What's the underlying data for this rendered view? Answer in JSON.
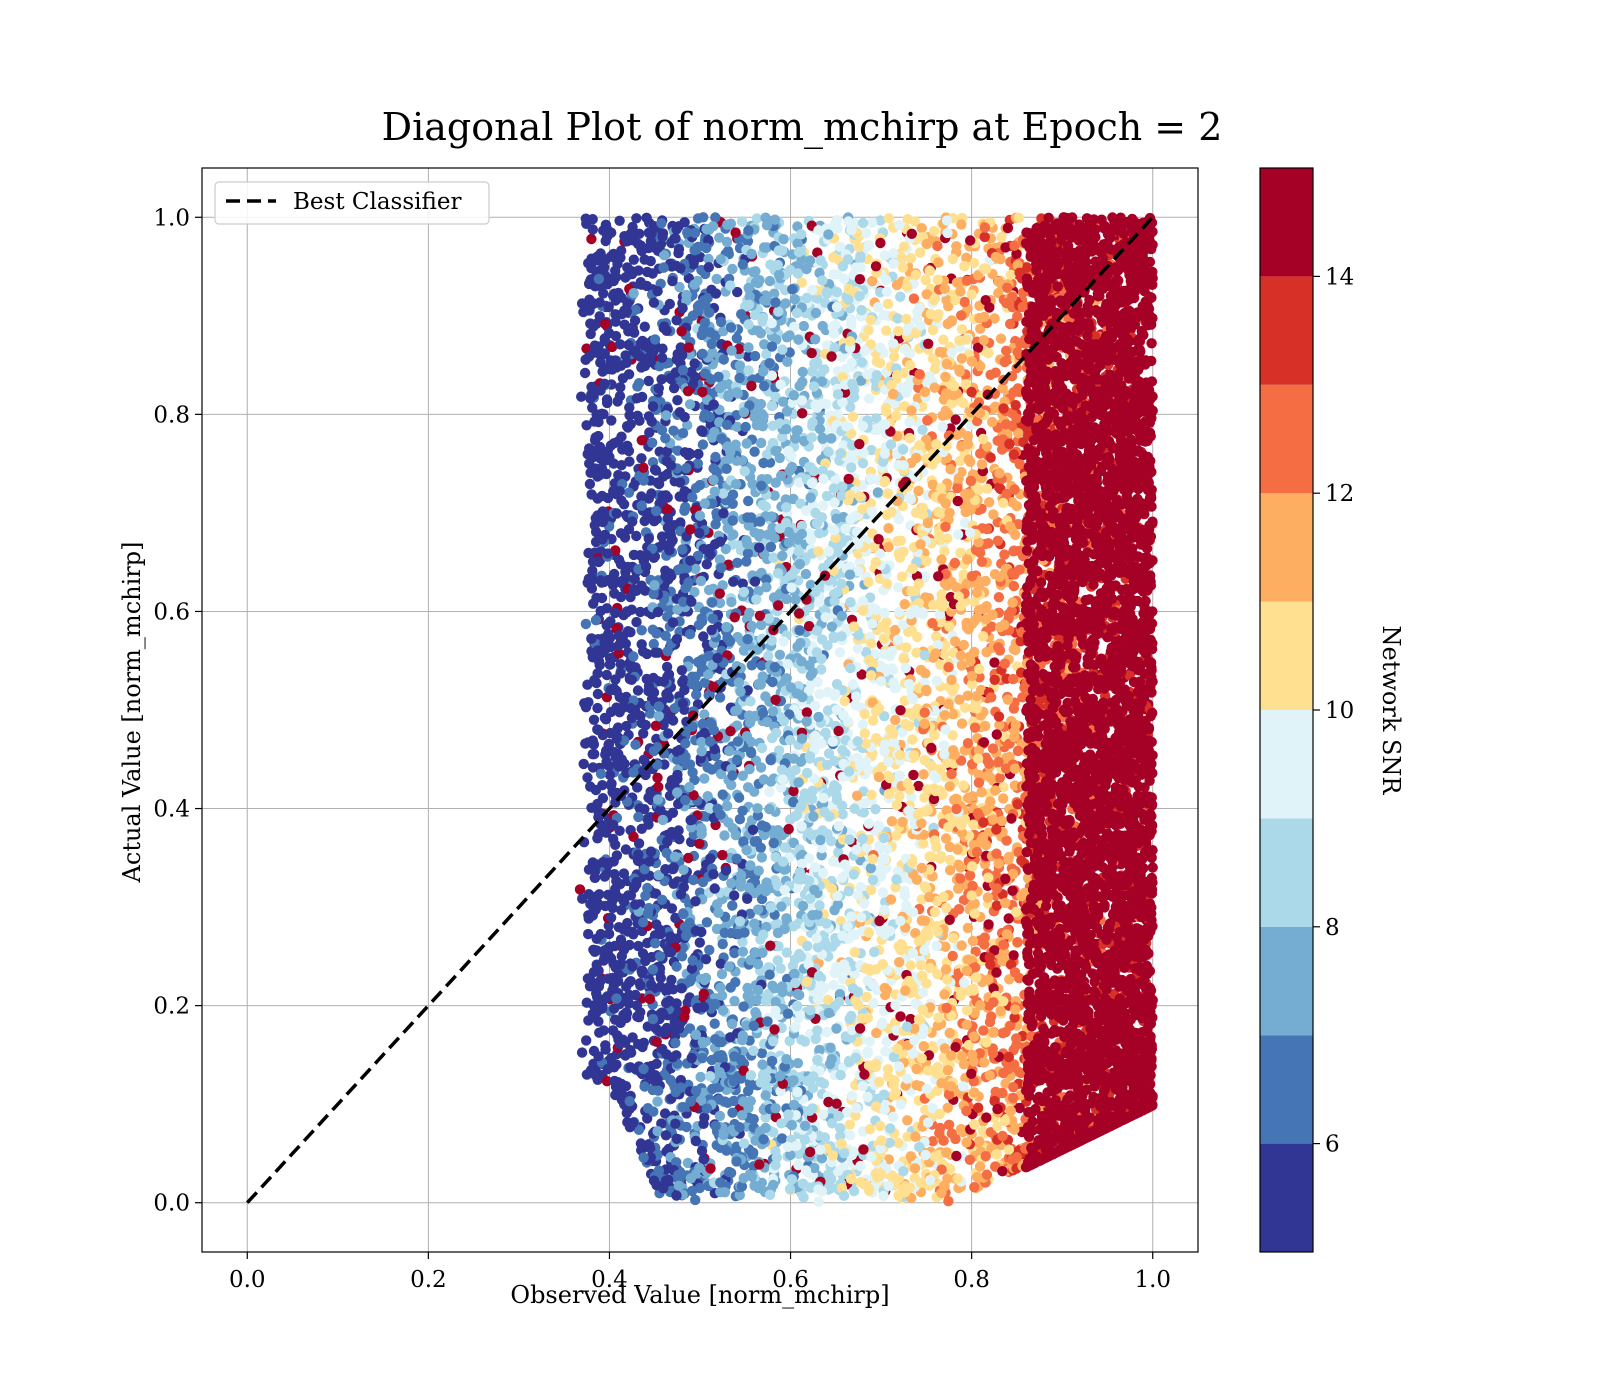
{
  "chart_data": {
    "type": "scatter",
    "title": "Diagonal Plot of norm_mchirp at Epoch = 2",
    "xlabel": "Observed Value [norm_mchirp]",
    "ylabel": "Actual Value [norm_mchirp]",
    "xlim": [
      -0.05,
      1.05
    ],
    "ylim": [
      -0.05,
      1.05
    ],
    "xticks": [
      0.0,
      0.2,
      0.4,
      0.6,
      0.8,
      1.0
    ],
    "xtick_labels": [
      "0.0",
      "0.2",
      "0.4",
      "0.6",
      "0.8",
      "1.0"
    ],
    "yticks": [
      0.0,
      0.2,
      0.4,
      0.6,
      0.8,
      1.0
    ],
    "ytick_labels": [
      "0.0",
      "0.2",
      "0.4",
      "0.6",
      "0.8",
      "1.0"
    ],
    "grid": true,
    "legend": {
      "placement": "upper-left",
      "entries": [
        "Best Classifier"
      ]
    },
    "reference_line": {
      "name": "Best Classifier",
      "style": "dashed",
      "color": "#000000",
      "x": [
        0.0,
        1.0
      ],
      "y": [
        0.0,
        1.0
      ]
    },
    "colorbar": {
      "label": "Network SNR",
      "range": [
        5,
        15
      ],
      "ticks": [
        6,
        8,
        10,
        12,
        14
      ],
      "tick_labels": [
        "6",
        "8",
        "10",
        "12",
        "14"
      ],
      "colors": [
        "#313695",
        "#4575b4",
        "#74add1",
        "#abd9e9",
        "#e0f3f8",
        "#fee090",
        "#fdae61",
        "#f46d43",
        "#d73027",
        "#a50026"
      ]
    },
    "scatter_summary": {
      "x_range": [
        0.36,
        1.0
      ],
      "y_range": [
        0.0,
        1.0
      ],
      "color_trend": "Network SNR increases with observed value: blue (low SNR) near x=0.4 shifting to dark red (high SNR) for x above 0.8"
    }
  }
}
